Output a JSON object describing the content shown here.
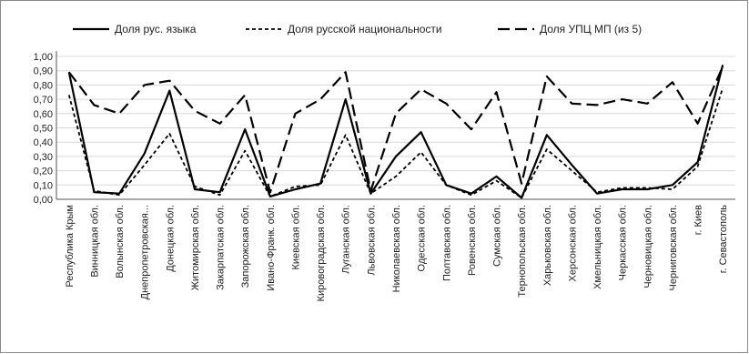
{
  "chart_data": {
    "type": "line",
    "ylim": [
      0,
      1
    ],
    "yticks": [
      "0,00",
      "0,10",
      "0,20",
      "0,30",
      "0,40",
      "0,50",
      "0,60",
      "0,70",
      "0,80",
      "0,90",
      "1,00"
    ],
    "categories": [
      "Республика Крым",
      "Винницкая обл.",
      "Волынская обл.",
      "Днепропетровская...",
      "Донецкая обл.",
      "Житомирская обл.",
      "Закарпатская обл.",
      "Запорожская обл.",
      "Ивано-Франк. обл.",
      "Киевская обл.",
      "Кировоградская обл.",
      "Луганская обл.",
      "Львовская обл.",
      "Николаевская обл.",
      "Одесская обл.",
      "Полтавская обл.",
      "Ровенская обл.",
      "Сумская обл.",
      "Тернопольская обл.",
      "Харьковская обл.",
      "Херсонская обл.",
      "Хмельницкая обл.",
      "Черкасская обл.",
      "Черновицкая обл.",
      "Черниговская обл.",
      "г. Киев",
      "г. Севастополь"
    ],
    "series": [
      {
        "name": "Доля рус. языка",
        "style": "solid",
        "values": [
          0.89,
          0.05,
          0.04,
          0.32,
          0.76,
          0.07,
          0.05,
          0.49,
          0.02,
          0.07,
          0.11,
          0.7,
          0.04,
          0.3,
          0.47,
          0.1,
          0.04,
          0.16,
          0.01,
          0.45,
          0.24,
          0.04,
          0.07,
          0.07,
          0.1,
          0.26,
          0.94
        ]
      },
      {
        "name": "Доля русской национальности",
        "style": "dashed-short",
        "values": [
          0.73,
          0.06,
          0.03,
          0.24,
          0.46,
          0.09,
          0.03,
          0.34,
          0.02,
          0.09,
          0.1,
          0.45,
          0.04,
          0.16,
          0.33,
          0.1,
          0.03,
          0.13,
          0.01,
          0.35,
          0.2,
          0.05,
          0.08,
          0.08,
          0.07,
          0.23,
          0.78
        ]
      },
      {
        "name": "Доля УПЦ МП (из 5)",
        "style": "dashed-long",
        "values": [
          0.89,
          0.66,
          0.6,
          0.8,
          0.83,
          0.62,
          0.53,
          0.73,
          0.05,
          0.6,
          0.7,
          0.89,
          0.06,
          0.6,
          0.77,
          0.67,
          0.49,
          0.75,
          0.11,
          0.86,
          0.67,
          0.66,
          0.7,
          0.67,
          0.82,
          0.53,
          0.93
        ]
      }
    ],
    "legend_position": "top",
    "grid": true
  }
}
